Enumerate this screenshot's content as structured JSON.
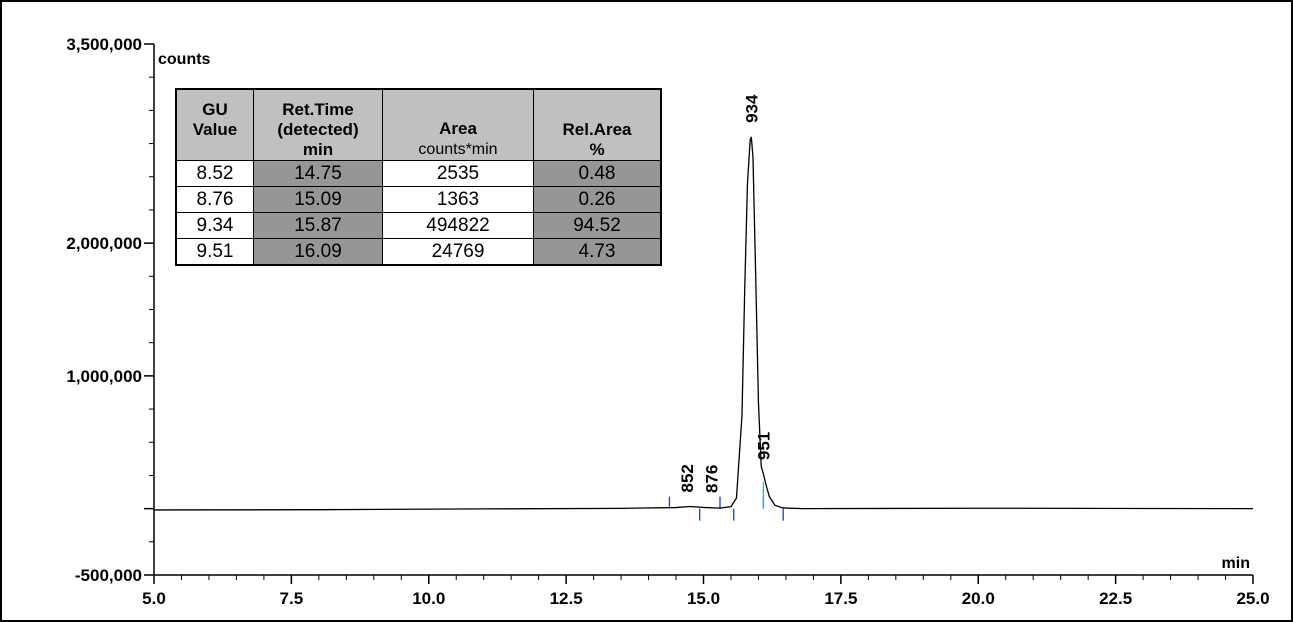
{
  "chart_data": {
    "type": "line",
    "y_unit": "counts",
    "x_unit": "min",
    "xlim": [
      5.0,
      25.0
    ],
    "ylim": [
      -500000,
      3500000
    ],
    "x_ticks": [
      "5.0",
      "7.5",
      "10.0",
      "12.5",
      "15.0",
      "17.5",
      "20.0",
      "22.5",
      "25.0"
    ],
    "x_tick_values": [
      5.0,
      7.5,
      10.0,
      12.5,
      15.0,
      17.5,
      20.0,
      22.5,
      25.0
    ],
    "y_ticks": [
      "3,500,000",
      "2,000,000",
      "1,000,000",
      "-500,000"
    ],
    "y_tick_values": [
      3500000,
      2000000,
      1000000,
      -500000
    ],
    "y_minor_step": 250000,
    "x_minor_step": 0.5,
    "series": [
      {
        "x": [
          5.0,
          8.0,
          11.0,
          13.5,
          14.5,
          14.75,
          15.0,
          15.3,
          15.5,
          15.6,
          15.7,
          15.75,
          15.8,
          15.85,
          15.87,
          15.9,
          15.95,
          16.0,
          16.05,
          16.09,
          16.15,
          16.2,
          16.3,
          16.45,
          16.8,
          20.0,
          25.0
        ],
        "y": [
          -10000,
          -8000,
          -2000,
          2000,
          8000,
          16000,
          9000,
          4000,
          15000,
          80000,
          700000,
          1650000,
          2450000,
          2780000,
          2800000,
          2650000,
          1750000,
          800000,
          320000,
          260000,
          160000,
          90000,
          25000,
          5000,
          0,
          3000,
          0
        ]
      }
    ],
    "peaks": [
      {
        "label": "852",
        "x": 14.75,
        "y": 16000
      },
      {
        "label": "876",
        "x": 15.09,
        "y": 12000
      },
      {
        "label": "934",
        "x": 15.87,
        "y": 2800000
      },
      {
        "label": "951",
        "x": 16.09,
        "y": 260000
      }
    ],
    "integration_markers": [
      14.38,
      14.93,
      15.3,
      15.55,
      16.09,
      16.45
    ],
    "table": {
      "headers": [
        {
          "lines": [
            "GU",
            "Value"
          ],
          "unit": ""
        },
        {
          "lines": [
            "Ret.Time",
            "(detected)",
            "min"
          ],
          "unit": ""
        },
        {
          "lines": [
            "Area"
          ],
          "unit": "counts*min"
        },
        {
          "lines": [
            "Rel.Area",
            "%"
          ],
          "unit": ""
        }
      ],
      "rows": [
        [
          "8.52",
          "14.75",
          "2535",
          "0.48"
        ],
        [
          "8.76",
          "15.09",
          "1363",
          "0.26"
        ],
        [
          "9.34",
          "15.87",
          "494822",
          "94.52"
        ],
        [
          "9.51",
          "16.09",
          "24769",
          "4.73"
        ]
      ]
    }
  },
  "colors": {
    "trace": "#000000",
    "marker": "#1f3fbf",
    "peak_marker": "#00c8c8",
    "header_bg": "#c0c0c0",
    "dark_cell": "#969696"
  }
}
